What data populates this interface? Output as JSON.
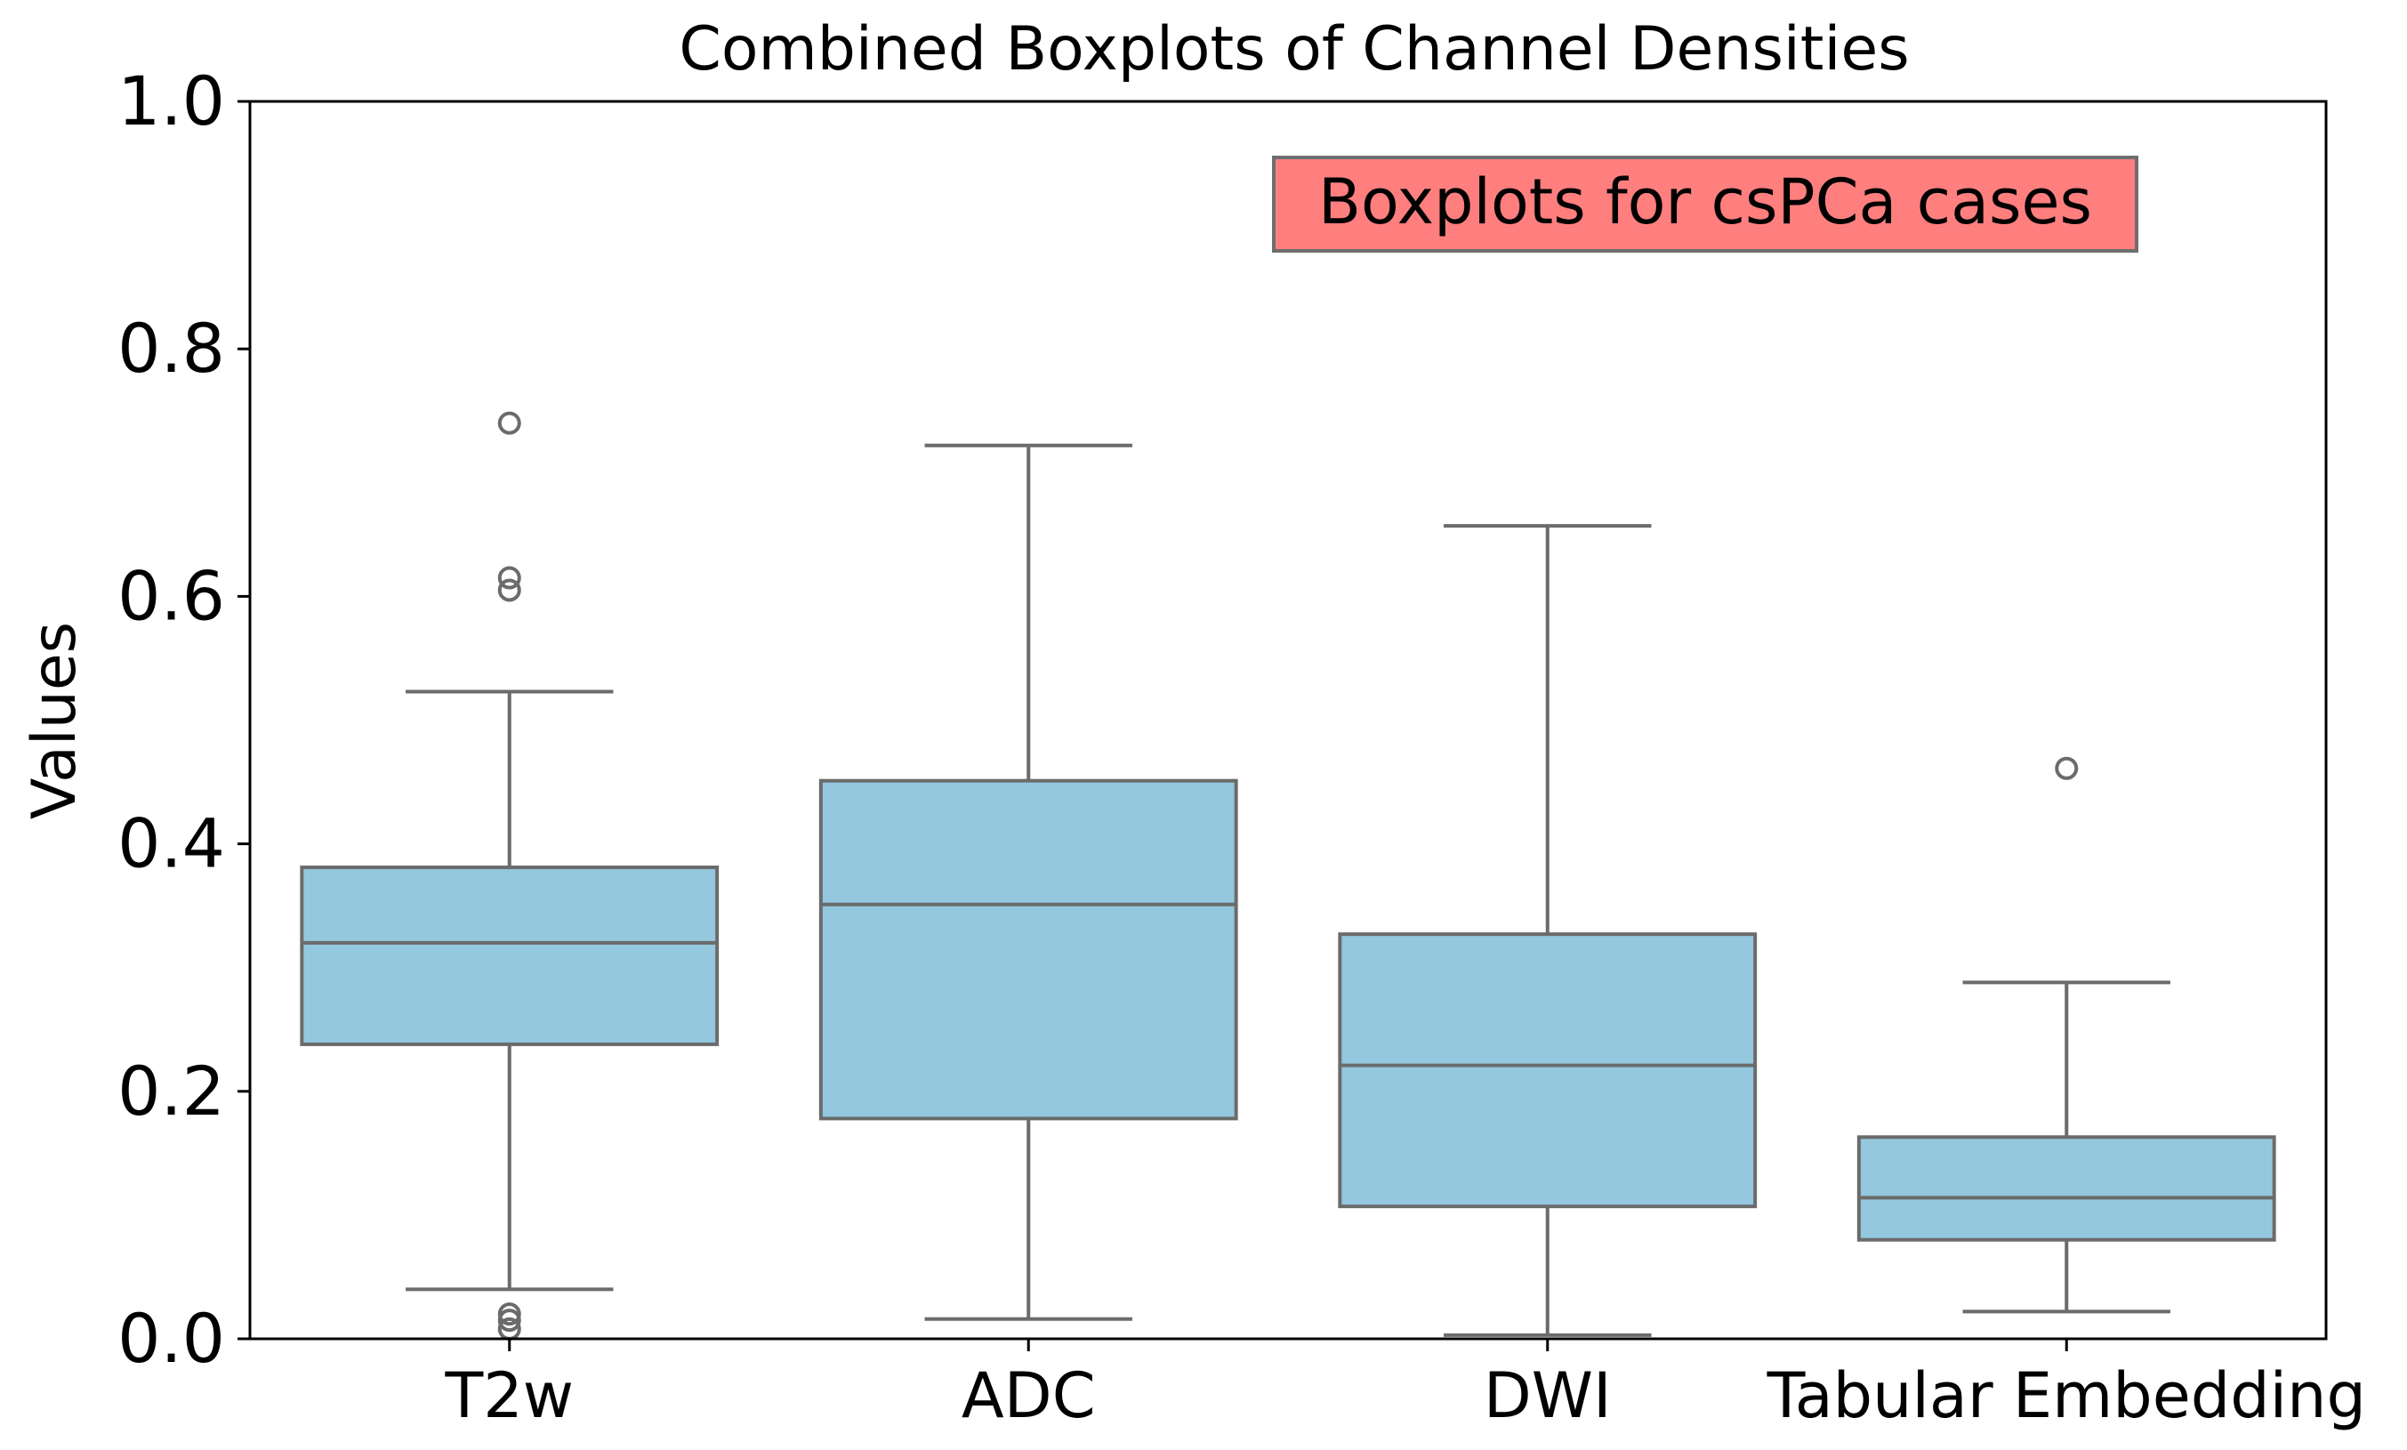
{
  "chart_data": {
    "type": "box",
    "title": "Combined Boxplots of Channel Densities",
    "xlabel": "",
    "ylabel": "Values",
    "ylim": [
      0.0,
      1.0
    ],
    "yticks": [
      0.0,
      0.2,
      0.4,
      0.6,
      0.8,
      1.0
    ],
    "ytick_labels": [
      "0.0",
      "0.2",
      "0.4",
      "0.6",
      "0.8",
      "1.0"
    ],
    "categories": [
      "T2w",
      "ADC",
      "DWI",
      "Tabular Embedding"
    ],
    "boxes": [
      {
        "category": "T2w",
        "whisker_low": 0.04,
        "q1": 0.238,
        "median": 0.32,
        "q3": 0.381,
        "whisker_high": 0.523,
        "outliers": [
          0.74,
          0.615,
          0.605,
          0.02,
          0.015,
          0.008
        ]
      },
      {
        "category": "ADC",
        "whisker_low": 0.016,
        "q1": 0.178,
        "median": 0.351,
        "q3": 0.451,
        "whisker_high": 0.722,
        "outliers": []
      },
      {
        "category": "DWI",
        "whisker_low": 0.003,
        "q1": 0.107,
        "median": 0.221,
        "q3": 0.327,
        "whisker_high": 0.657,
        "outliers": []
      },
      {
        "category": "Tabular Embedding",
        "whisker_low": 0.022,
        "q1": 0.08,
        "median": 0.114,
        "q3": 0.163,
        "whisker_high": 0.288,
        "outliers": [
          0.461
        ]
      }
    ],
    "annotation": {
      "text": "Boxplots for csPCa cases",
      "background": "#ff7f7f",
      "placement": "top-right"
    },
    "colors": {
      "box_fill": "#93c8de",
      "line": "#6b6b6b",
      "axis": "#000000"
    },
    "grid": false,
    "legend": false
  }
}
